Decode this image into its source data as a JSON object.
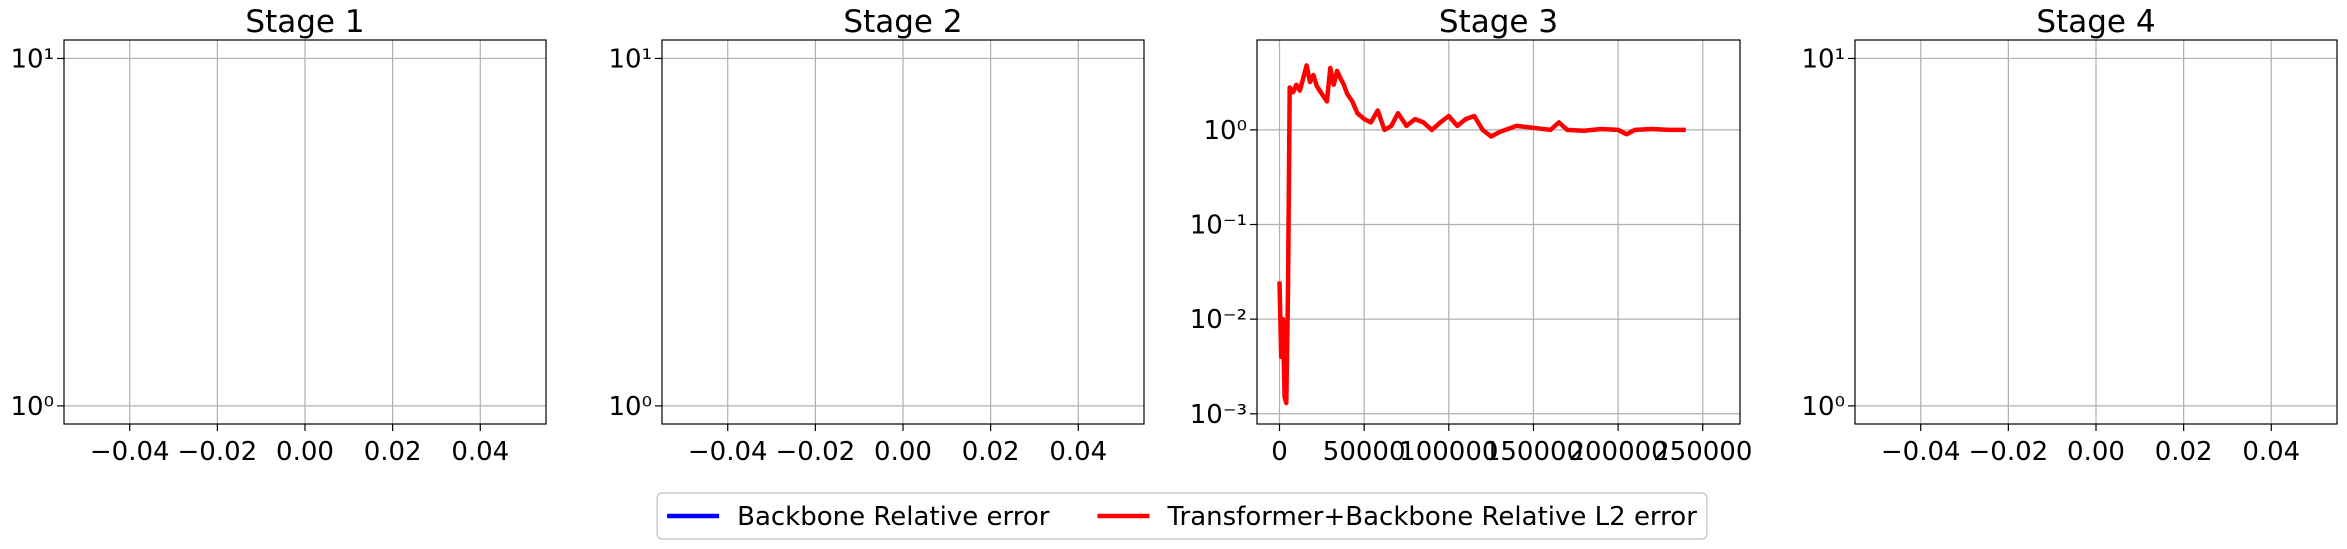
{
  "chart_data": [
    {
      "type": "line",
      "title": "Stage 1",
      "log_y": true,
      "grid": true,
      "xlim": [
        -0.055,
        0.055
      ],
      "xticks": [
        {
          "value": -0.04,
          "label": "−0.04"
        },
        {
          "value": -0.02,
          "label": "−0.02"
        },
        {
          "value": 0,
          "label": "0.00"
        },
        0.02,
        0.04
      ],
      "ylim": [
        0.887,
        11.3
      ],
      "yticks": [
        {
          "value": 1,
          "label": "10⁰"
        },
        {
          "value": 10,
          "label": "10¹"
        }
      ],
      "series": []
    },
    {
      "type": "line",
      "title": "Stage 2",
      "log_y": true,
      "grid": true,
      "xlim": [
        -0.055,
        0.055
      ],
      "xticks": [
        {
          "value": -0.04,
          "label": "−0.04"
        },
        {
          "value": -0.02,
          "label": "−0.02"
        },
        {
          "value": 0,
          "label": "0.00"
        },
        0.02,
        0.04
      ],
      "ylim": [
        0.887,
        11.3
      ],
      "yticks": [
        {
          "value": 1,
          "label": "10⁰"
        },
        {
          "value": 10,
          "label": "10¹"
        }
      ],
      "series": []
    },
    {
      "type": "line",
      "title": "Stage 3",
      "log_y": true,
      "grid": true,
      "xlim": [
        -13300,
        272000
      ],
      "xticks": [
        0,
        50000,
        100000,
        150000,
        200000,
        250000
      ],
      "ylim": [
        0.00078,
        8.9
      ],
      "yticks": [
        {
          "value": 0.001,
          "label": "10⁻³"
        },
        {
          "value": 0.01,
          "label": "10⁻²"
        },
        {
          "value": 0.1,
          "label": "10⁻¹"
        },
        {
          "value": 1,
          "label": "10⁰"
        }
      ],
      "series": [
        {
          "name": "Backbone Relative error",
          "color": "#0000ff",
          "x": [],
          "values": []
        },
        {
          "name": "Transformer+Backbone Relative L2 error",
          "color": "#ff0000",
          "x": [
            0,
            1000,
            2000,
            3000,
            4000,
            5000,
            6000,
            8000,
            10000,
            12000,
            14000,
            16000,
            18000,
            20000,
            22000,
            25000,
            28000,
            30000,
            32000,
            34000,
            36000,
            38000,
            40000,
            43000,
            46000,
            50000,
            54000,
            58000,
            62000,
            66000,
            70000,
            75000,
            80000,
            85000,
            90000,
            95000,
            100000,
            105000,
            110000,
            115000,
            120000,
            125000,
            130000,
            140000,
            150000,
            160000,
            165000,
            170000,
            180000,
            190000,
            200000,
            205000,
            210000,
            220000,
            230000,
            240000
          ],
          "values": [
            0.025,
            0.004,
            0.01,
            0.0015,
            0.0013,
            0.02,
            2.8,
            2.5,
            3.0,
            2.6,
            3.5,
            4.8,
            3.2,
            3.8,
            2.9,
            2.4,
            2.0,
            4.5,
            3.0,
            4.2,
            3.5,
            3.0,
            2.4,
            2.0,
            1.5,
            1.3,
            1.2,
            1.6,
            1.0,
            1.1,
            1.5,
            1.1,
            1.3,
            1.2,
            1.0,
            1.2,
            1.4,
            1.1,
            1.3,
            1.4,
            1.0,
            0.85,
            0.95,
            1.1,
            1.05,
            1.0,
            1.2,
            1.0,
            0.98,
            1.02,
            1.0,
            0.9,
            1.0,
            1.02,
            1.0,
            1.0
          ]
        }
      ]
    },
    {
      "type": "line",
      "title": "Stage 4",
      "log_y": true,
      "grid": true,
      "xlim": [
        -0.055,
        0.055
      ],
      "xticks": [
        {
          "value": -0.04,
          "label": "−0.04"
        },
        {
          "value": -0.02,
          "label": "−0.02"
        },
        {
          "value": 0,
          "label": "0.00"
        },
        0.02,
        0.04
      ],
      "ylim": [
        0.887,
        11.3
      ],
      "yticks": [
        {
          "value": 1,
          "label": "10⁰"
        },
        {
          "value": 10,
          "label": "10¹"
        }
      ],
      "series": []
    }
  ]
}
